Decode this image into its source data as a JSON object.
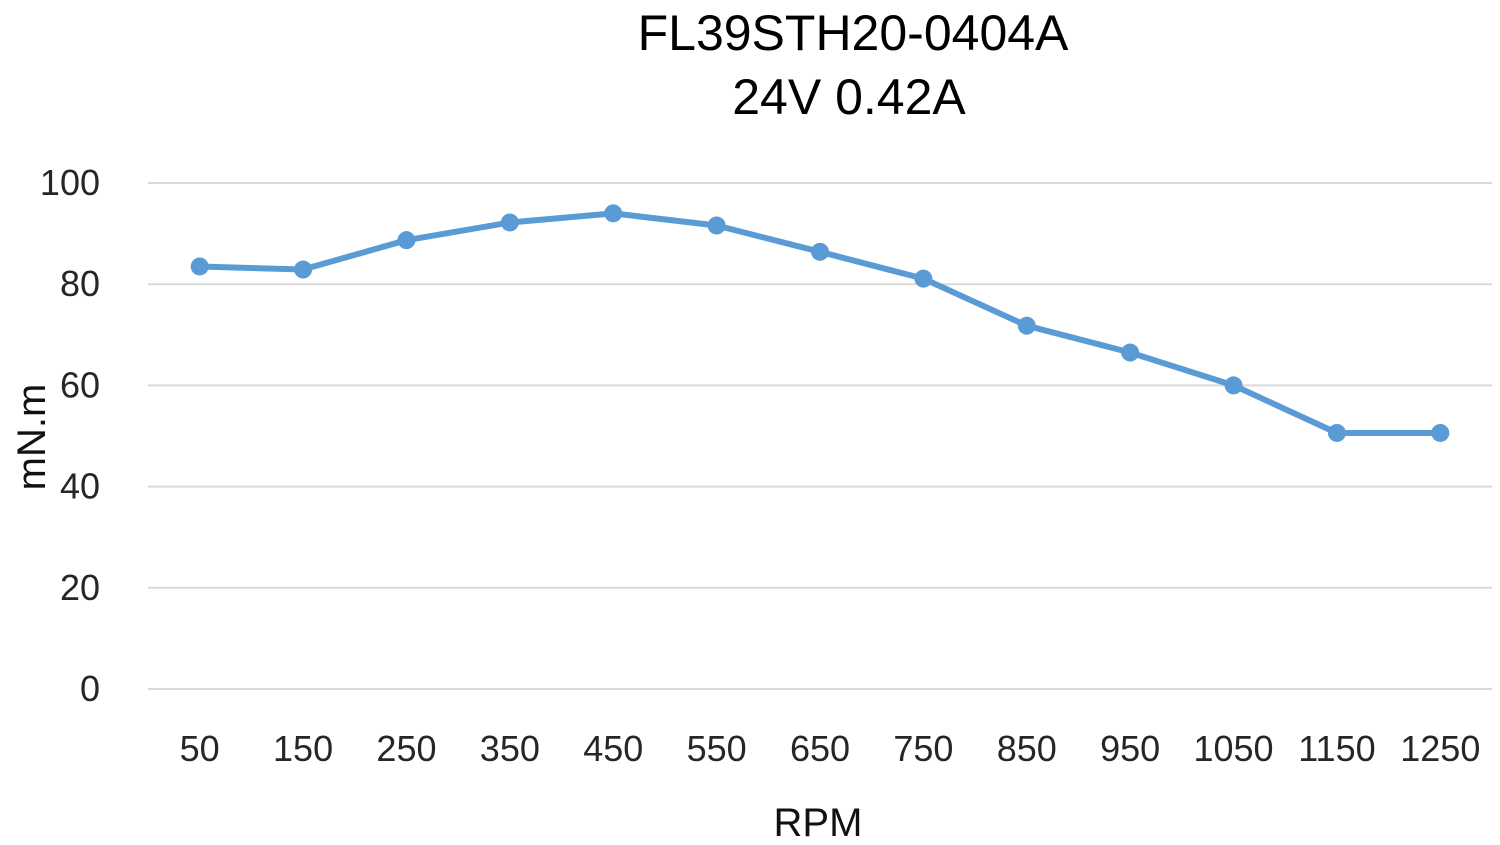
{
  "chart_data": {
    "type": "line",
    "title": "FL39STH20-0404A",
    "subtitle": "24V  0.42A",
    "xlabel": "RPM",
    "ylabel": "mN.m",
    "categories": [
      "50",
      "150",
      "250",
      "350",
      "450",
      "550",
      "650",
      "750",
      "850",
      "950",
      "1050",
      "1150",
      "1250"
    ],
    "series": [
      {
        "values": [
          83.5,
          82.9,
          88.7,
          92.2,
          94.0,
          91.6,
          86.4,
          81.1,
          71.8,
          66.5,
          60.0,
          50.6,
          50.6
        ]
      }
    ],
    "ylim": [
      0,
      100
    ],
    "yticks": [
      "0",
      "20",
      "40",
      "60",
      "80",
      "100"
    ],
    "grid": true,
    "legend": "none",
    "colors": {
      "series": "#5b9bd5",
      "grid": "#d9d9d9"
    }
  }
}
